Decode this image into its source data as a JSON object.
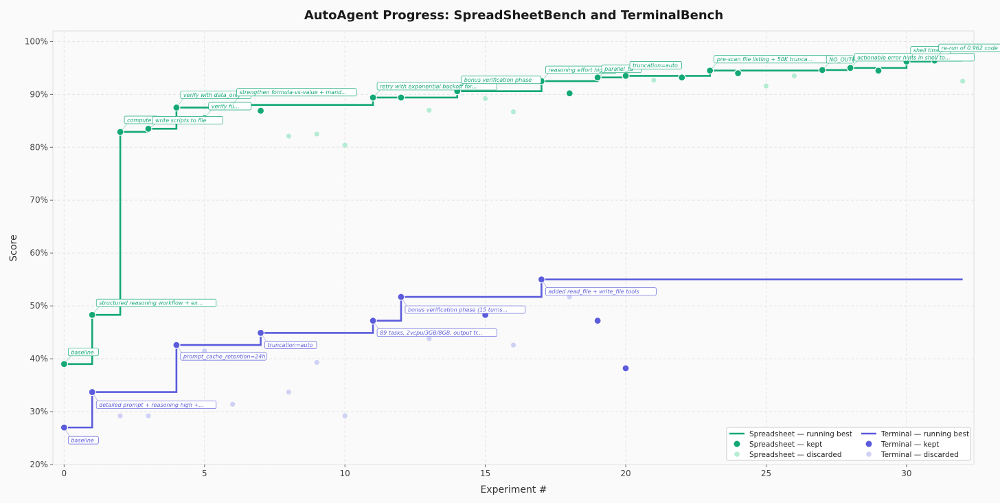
{
  "chart_data": {
    "type": "line",
    "title": "AutoAgent Progress: SpreadSheetBench and TerminalBench",
    "xlabel": "Experiment #",
    "ylabel": "Score",
    "xlim": [
      -0.4,
      32.4
    ],
    "ylim": [
      0.2,
      1.02
    ],
    "x_ticks": [
      0,
      5,
      10,
      15,
      20,
      25,
      30
    ],
    "y_ticks": [
      0.2,
      0.3,
      0.4,
      0.5,
      0.6,
      0.7,
      0.8,
      0.9,
      1.0
    ],
    "y_tick_format": "percent",
    "grid": true,
    "legend_position": "bottom-right",
    "colors": {
      "spreadsheet": "#13a874",
      "spreadsheet_discarded": "#b4ecd4",
      "terminal": "#5b5bdc",
      "terminal_discarded": "#cfd2f4"
    },
    "legend": [
      {
        "label": "Spreadsheet — running best",
        "kind": "line",
        "color": "#13a874"
      },
      {
        "label": "Terminal — running best",
        "kind": "line",
        "color": "#5b5bdc"
      },
      {
        "label": "Spreadsheet — kept",
        "kind": "dot",
        "color": "#13a874"
      },
      {
        "label": "Terminal — kept",
        "kind": "dot",
        "color": "#5b5bdc"
      },
      {
        "label": "Spreadsheet — discarded",
        "kind": "dot",
        "color": "#b4ecd4"
      },
      {
        "label": "Terminal — discarded",
        "kind": "dot",
        "color": "#cfd2f4"
      }
    ],
    "series": [
      {
        "name": "Spreadsheet — running best",
        "step": true,
        "points": [
          [
            0,
            0.39
          ],
          [
            1,
            0.483
          ],
          [
            2,
            0.829
          ],
          [
            3,
            0.835
          ],
          [
            4,
            0.875
          ],
          [
            6,
            0.88
          ],
          [
            11,
            0.894
          ],
          [
            14,
            0.906
          ],
          [
            17,
            0.925
          ],
          [
            19,
            0.932
          ],
          [
            20,
            0.935
          ],
          [
            23,
            0.945
          ],
          [
            27,
            0.946
          ],
          [
            28,
            0.95
          ],
          [
            30,
            0.962
          ],
          [
            31,
            0.964
          ],
          [
            32,
            0.964
          ]
        ]
      },
      {
        "name": "Terminal — running best",
        "step": true,
        "points": [
          [
            0,
            0.27
          ],
          [
            1,
            0.337
          ],
          [
            4,
            0.426
          ],
          [
            7,
            0.449
          ],
          [
            11,
            0.472
          ],
          [
            12,
            0.517
          ],
          [
            17,
            0.55
          ],
          [
            32,
            0.55
          ]
        ]
      },
      {
        "name": "Spreadsheet — kept",
        "points": [
          [
            0,
            0.39
          ],
          [
            1,
            0.483
          ],
          [
            2,
            0.829
          ],
          [
            3,
            0.835
          ],
          [
            4,
            0.875
          ],
          [
            5,
            0.855
          ],
          [
            6,
            0.88
          ],
          [
            7,
            0.869
          ],
          [
            11,
            0.894
          ],
          [
            12,
            0.894
          ],
          [
            14,
            0.906
          ],
          [
            17,
            0.925
          ],
          [
            18,
            0.902
          ],
          [
            19,
            0.932
          ],
          [
            20,
            0.935
          ],
          [
            22,
            0.932
          ],
          [
            23,
            0.945
          ],
          [
            24,
            0.94
          ],
          [
            27,
            0.946
          ],
          [
            28,
            0.95
          ],
          [
            29,
            0.945
          ],
          [
            30,
            0.962
          ],
          [
            31,
            0.964
          ]
        ]
      },
      {
        "name": "Spreadsheet — discarded",
        "points": [
          [
            8,
            0.821
          ],
          [
            9,
            0.825
          ],
          [
            10,
            0.804
          ],
          [
            13,
            0.87
          ],
          [
            15,
            0.892
          ],
          [
            16,
            0.867
          ],
          [
            21,
            0.927
          ],
          [
            25,
            0.916
          ],
          [
            26,
            0.935
          ],
          [
            32,
            0.925
          ]
        ]
      },
      {
        "name": "Terminal — kept",
        "points": [
          [
            0,
            0.27
          ],
          [
            1,
            0.337
          ],
          [
            4,
            0.426
          ],
          [
            7,
            0.449
          ],
          [
            11,
            0.472
          ],
          [
            12,
            0.517
          ],
          [
            15,
            0.483
          ],
          [
            17,
            0.55
          ],
          [
            19,
            0.472
          ],
          [
            20,
            0.382
          ]
        ]
      },
      {
        "name": "Terminal — discarded",
        "points": [
          [
            2,
            0.292
          ],
          [
            3,
            0.292
          ],
          [
            5,
            0.415
          ],
          [
            6,
            0.314
          ],
          [
            8,
            0.337
          ],
          [
            9,
            0.393
          ],
          [
            10,
            0.292
          ],
          [
            13,
            0.438
          ],
          [
            14,
            0.494
          ],
          [
            16,
            0.426
          ],
          [
            18,
            0.517
          ]
        ]
      }
    ],
    "annotations": [
      {
        "series": "spreadsheet",
        "text": "baseline",
        "x": 0,
        "y": 0.39
      },
      {
        "series": "spreadsheet",
        "text": "structured reasoning workflow + ex...",
        "x": 1,
        "y": 0.483
      },
      {
        "series": "spreadsheet",
        "text": "compute v",
        "x": 2,
        "y": 0.829
      },
      {
        "series": "spreadsheet",
        "text": "write scripts to file",
        "x": 3,
        "y": 0.835
      },
      {
        "series": "spreadsheet",
        "text": "verify with data_only",
        "x": 4,
        "y": 0.875
      },
      {
        "series": "spreadsheet",
        "text": "verify fu...",
        "x": 5,
        "y": 0.855
      },
      {
        "series": "spreadsheet",
        "text": "strengthen formula-vs-value + mand...",
        "x": 6,
        "y": 0.88
      },
      {
        "series": "spreadsheet",
        "text": "retry with exponential backoff for...",
        "x": 11,
        "y": 0.894
      },
      {
        "series": "spreadsheet",
        "text": "bonus verification phase",
        "x": 14,
        "y": 0.906
      },
      {
        "series": "spreadsheet",
        "text": "reasoning effort high",
        "x": 17,
        "y": 0.925
      },
      {
        "series": "spreadsheet",
        "text": "parallel_ta",
        "x": 19,
        "y": 0.932
      },
      {
        "series": "spreadsheet",
        "text": "truncation=auto",
        "x": 20,
        "y": 0.935
      },
      {
        "series": "spreadsheet",
        "text": "pre-scan file listing + 50K trunca...",
        "x": 23,
        "y": 0.945
      },
      {
        "series": "spreadsheet",
        "text": "NO_OUTP",
        "x": 27,
        "y": 0.946
      },
      {
        "series": "spreadsheet",
        "text": "actionable error hints in shell to...",
        "x": 28,
        "y": 0.95
      },
      {
        "series": "spreadsheet",
        "text": "shell timeo",
        "x": 30,
        "y": 0.962
      },
      {
        "series": "spreadsheet",
        "text": "re-run of 0.962 code",
        "x": 31,
        "y": 0.964
      },
      {
        "series": "terminal",
        "text": "baseline",
        "x": 0,
        "y": 0.27
      },
      {
        "series": "terminal",
        "text": "detailed prompt + reasoning high +...",
        "x": 1,
        "y": 0.337
      },
      {
        "series": "terminal",
        "text": "prompt_cache_retention=24h",
        "x": 4,
        "y": 0.426
      },
      {
        "series": "terminal",
        "text": "truncation=auto",
        "x": 7,
        "y": 0.449
      },
      {
        "series": "terminal",
        "text": "89 tasks, 2vcpu/3GB/8GB, output tr...",
        "x": 11,
        "y": 0.472
      },
      {
        "series": "terminal",
        "text": "bonus verification phase (15 turns...",
        "x": 12,
        "y": 0.517
      },
      {
        "series": "terminal",
        "text": "added read_file + write_file tools",
        "x": 17,
        "y": 0.55
      }
    ]
  }
}
